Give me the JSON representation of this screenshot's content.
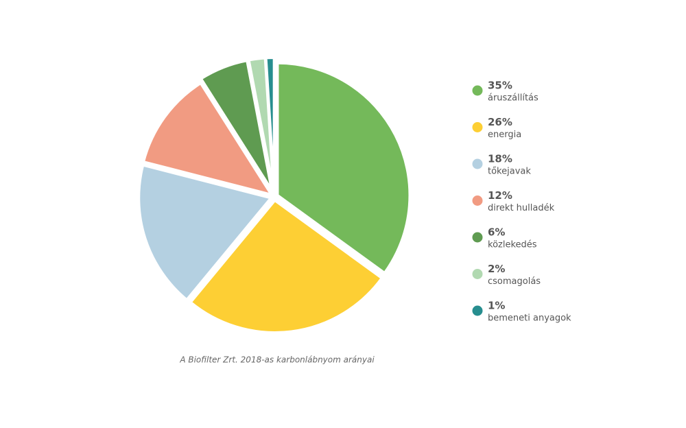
{
  "chart_data": {
    "type": "pie",
    "title": "A Biofilter Zrt. 2018-as karbonlábnyom arányai",
    "categories": [
      "áruszállítás",
      "energia",
      "tőkejavak",
      "direkt hulladék",
      "közlekedés",
      "csomagolás",
      "bemeneti anyagok"
    ],
    "values": [
      35,
      26,
      18,
      12,
      6,
      2,
      1
    ],
    "value_labels": [
      "35%",
      "26%",
      "18%",
      "12%",
      "6%",
      "2%",
      "1%"
    ],
    "colors": [
      "#74b95a",
      "#fdcf34",
      "#b4d0e1",
      "#f19b82",
      "#5f9b51",
      "#b1d9b1",
      "#278e8f"
    ]
  }
}
